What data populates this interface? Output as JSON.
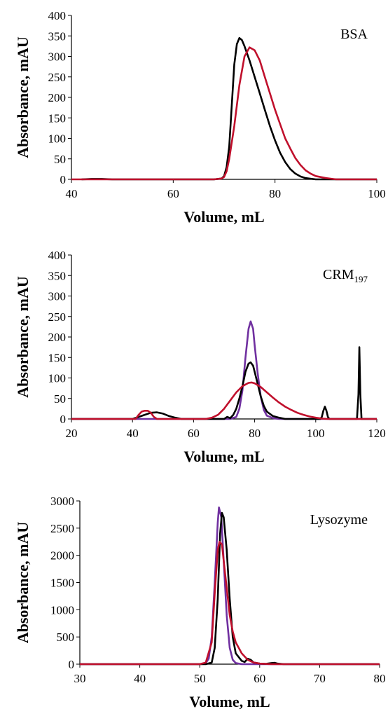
{
  "chart_data": [
    {
      "type": "line",
      "annotation": "BSA",
      "xlabel": "Volume, mL",
      "ylabel": "Absorbance, mAU",
      "xlim": [
        40,
        100
      ],
      "ylim": [
        0,
        400
      ],
      "xticks": [
        40,
        60,
        80,
        100
      ],
      "yticks": [
        0,
        50,
        100,
        150,
        200,
        250,
        300,
        350,
        400
      ],
      "series": [
        {
          "color": "#000000",
          "points": [
            [
              42,
              0
            ],
            [
              44,
              1
            ],
            [
              46,
              1
            ],
            [
              48,
              0
            ],
            [
              60,
              0
            ],
            [
              68,
              0
            ],
            [
              69.5,
              2
            ],
            [
              70,
              8
            ],
            [
              70.5,
              30
            ],
            [
              71,
              80
            ],
            [
              71.5,
              180
            ],
            [
              72,
              280
            ],
            [
              72.5,
              330
            ],
            [
              73,
              345
            ],
            [
              73.5,
              340
            ],
            [
              74,
              325
            ],
            [
              75,
              290
            ],
            [
              76,
              250
            ],
            [
              77,
              210
            ],
            [
              78,
              170
            ],
            [
              79,
              130
            ],
            [
              80,
              95
            ],
            [
              81,
              65
            ],
            [
              82,
              42
            ],
            [
              83,
              25
            ],
            [
              84,
              14
            ],
            [
              85,
              7
            ],
            [
              86,
              3
            ],
            [
              88,
              0
            ],
            [
              100,
              0
            ]
          ]
        },
        {
          "color": "#c0102c",
          "points": [
            [
              40,
              0
            ],
            [
              68,
              0
            ],
            [
              69.5,
              2
            ],
            [
              70,
              6
            ],
            [
              70.5,
              20
            ],
            [
              71,
              50
            ],
            [
              72,
              130
            ],
            [
              73,
              230
            ],
            [
              74,
              300
            ],
            [
              75,
              322
            ],
            [
              76,
              315
            ],
            [
              77,
              290
            ],
            [
              78,
              250
            ],
            [
              79,
              210
            ],
            [
              80,
              170
            ],
            [
              81,
              135
            ],
            [
              82,
              100
            ],
            [
              83,
              75
            ],
            [
              84,
              52
            ],
            [
              85,
              35
            ],
            [
              86,
              22
            ],
            [
              87,
              14
            ],
            [
              88,
              8
            ],
            [
              90,
              3
            ],
            [
              92,
              0
            ],
            [
              100,
              0
            ]
          ]
        }
      ]
    },
    {
      "type": "line",
      "annotation": "CRM",
      "annotation_sub": "197",
      "xlabel": "Volume, mL",
      "ylabel": "Absorbance, mAU",
      "xlim": [
        20,
        120
      ],
      "ylim": [
        0,
        400
      ],
      "xticks": [
        20,
        40,
        60,
        80,
        100,
        120
      ],
      "yticks": [
        0,
        50,
        100,
        150,
        200,
        250,
        300,
        350,
        400
      ],
      "series": [
        {
          "color": "#7030a0",
          "points": [
            [
              20,
              0
            ],
            [
              72,
              0
            ],
            [
              74,
              5
            ],
            [
              75,
              25
            ],
            [
              76,
              70
            ],
            [
              77,
              150
            ],
            [
              78,
              220
            ],
            [
              78.7,
              238
            ],
            [
              79.5,
              220
            ],
            [
              80,
              180
            ],
            [
              81,
              110
            ],
            [
              82,
              55
            ],
            [
              83,
              22
            ],
            [
              84,
              8
            ],
            [
              86,
              2
            ],
            [
              88,
              0
            ],
            [
              120,
              0
            ]
          ]
        },
        {
          "color": "#000000",
          "points": [
            [
              20,
              0
            ],
            [
              40,
              0
            ],
            [
              42,
              5
            ],
            [
              44,
              10
            ],
            [
              46,
              15
            ],
            [
              48,
              16
            ],
            [
              50,
              13
            ],
            [
              52,
              7
            ],
            [
              54,
              3
            ],
            [
              56,
              0
            ],
            [
              70,
              0
            ],
            [
              71,
              5
            ],
            [
              72,
              2
            ],
            [
              73,
              10
            ],
            [
              74,
              25
            ],
            [
              75,
              50
            ],
            [
              76,
              80
            ],
            [
              77,
              115
            ],
            [
              78,
              135
            ],
            [
              78.7,
              138
            ],
            [
              79.5,
              130
            ],
            [
              80,
              115
            ],
            [
              81,
              85
            ],
            [
              82,
              55
            ],
            [
              83,
              32
            ],
            [
              84,
              18
            ],
            [
              86,
              7
            ],
            [
              88,
              3
            ],
            [
              90,
              0
            ],
            [
              101.5,
              0
            ],
            [
              102,
              5
            ],
            [
              102.5,
              20
            ],
            [
              103,
              30
            ],
            [
              103.5,
              20
            ],
            [
              104,
              5
            ],
            [
              104.5,
              0
            ],
            [
              113.5,
              0
            ],
            [
              114,
              60
            ],
            [
              114.3,
              175
            ],
            [
              114.6,
              60
            ],
            [
              115,
              0
            ],
            [
              120,
              0
            ]
          ]
        },
        {
          "color": "#c0102c",
          "points": [
            [
              20,
              0
            ],
            [
              41,
              0
            ],
            [
              42,
              10
            ],
            [
              43,
              18
            ],
            [
              44,
              20
            ],
            [
              45,
              20
            ],
            [
              46,
              15
            ],
            [
              47,
              5
            ],
            [
              48,
              0
            ],
            [
              64,
              0
            ],
            [
              66,
              3
            ],
            [
              68,
              10
            ],
            [
              70,
              25
            ],
            [
              72,
              45
            ],
            [
              74,
              65
            ],
            [
              76,
              80
            ],
            [
              78,
              88
            ],
            [
              79,
              89
            ],
            [
              80,
              87
            ],
            [
              82,
              78
            ],
            [
              84,
              65
            ],
            [
              86,
              52
            ],
            [
              88,
              40
            ],
            [
              90,
              30
            ],
            [
              92,
              22
            ],
            [
              94,
              15
            ],
            [
              96,
              10
            ],
            [
              98,
              6
            ],
            [
              100,
              3
            ],
            [
              102,
              1
            ],
            [
              104,
              0
            ],
            [
              120,
              0
            ]
          ]
        }
      ]
    },
    {
      "type": "line",
      "annotation": "Lysozyme",
      "xlabel": "Volume, mL",
      "ylabel": "Absorbance, mAU",
      "xlim": [
        30,
        80
      ],
      "ylim": [
        0,
        3000
      ],
      "xticks": [
        30,
        40,
        50,
        60,
        70,
        80
      ],
      "yticks": [
        0,
        500,
        1000,
        1500,
        2000,
        2500,
        3000
      ],
      "series": [
        {
          "color": "#7030a0",
          "points": [
            [
              30,
              0
            ],
            [
              50,
              0
            ],
            [
              51,
              20
            ],
            [
              51.5,
              100
            ],
            [
              52,
              500
            ],
            [
              52.5,
              1500
            ],
            [
              53,
              2600
            ],
            [
              53.2,
              2880
            ],
            [
              53.6,
              2700
            ],
            [
              54,
              1900
            ],
            [
              54.5,
              900
            ],
            [
              55,
              300
            ],
            [
              55.5,
              80
            ],
            [
              56,
              20
            ],
            [
              57,
              0
            ],
            [
              80,
              0
            ]
          ]
        },
        {
          "color": "#000000",
          "points": [
            [
              30,
              0
            ],
            [
              51,
              0
            ],
            [
              52,
              30
            ],
            [
              52.5,
              300
            ],
            [
              53,
              1200
            ],
            [
              53.4,
              2400
            ],
            [
              53.7,
              2780
            ],
            [
              54,
              2700
            ],
            [
              54.5,
              2100
            ],
            [
              55,
              1200
            ],
            [
              55.5,
              500
            ],
            [
              56,
              200
            ],
            [
              57,
              60
            ],
            [
              57.5,
              40
            ],
            [
              58,
              100
            ],
            [
              58.5,
              80
            ],
            [
              59,
              30
            ],
            [
              60,
              10
            ],
            [
              61,
              5
            ],
            [
              62,
              20
            ],
            [
              62.5,
              25
            ],
            [
              63,
              10
            ],
            [
              64,
              0
            ],
            [
              80,
              0
            ]
          ]
        },
        {
          "color": "#c0102c",
          "points": [
            [
              30,
              0
            ],
            [
              50,
              0
            ],
            [
              51,
              30
            ],
            [
              52,
              400
            ],
            [
              52.5,
              1300
            ],
            [
              53,
              2100
            ],
            [
              53.3,
              2250
            ],
            [
              53.7,
              2200
            ],
            [
              54,
              1900
            ],
            [
              54.5,
              1400
            ],
            [
              55,
              900
            ],
            [
              55.5,
              600
            ],
            [
              56,
              400
            ],
            [
              57,
              200
            ],
            [
              58,
              80
            ],
            [
              59,
              30
            ],
            [
              60,
              10
            ],
            [
              62,
              0
            ],
            [
              80,
              0
            ]
          ]
        }
      ]
    }
  ]
}
